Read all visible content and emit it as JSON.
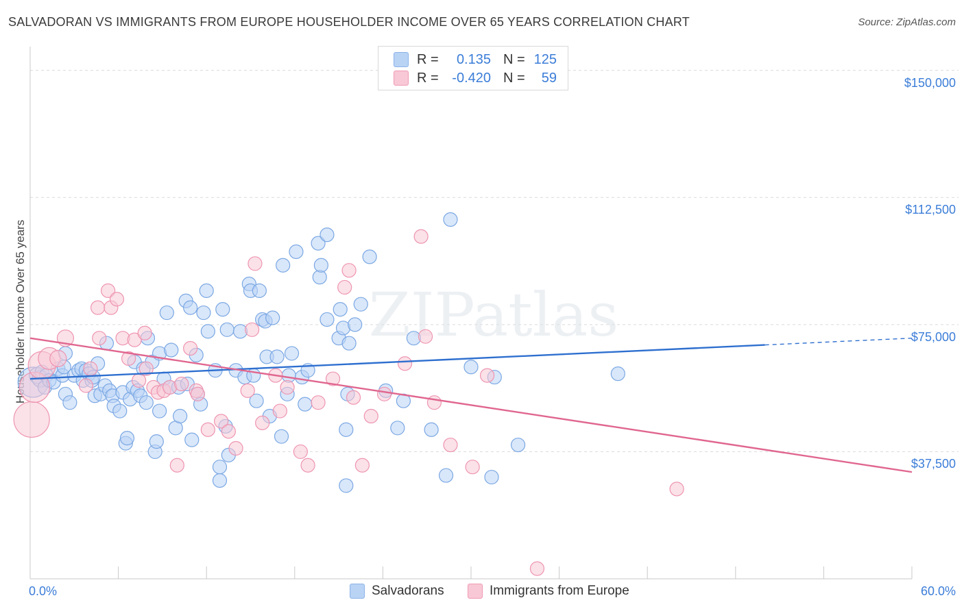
{
  "title": "SALVADORAN VS IMMIGRANTS FROM EUROPE HOUSEHOLDER INCOME OVER 65 YEARS CORRELATION CHART",
  "source": "Source: ZipAtlas.com",
  "watermark": "ZIPatlas",
  "colors": {
    "blue_fill": "#b9d3f5",
    "blue_stroke": "#7aa7e3",
    "blue_line": "#2e6fcf",
    "pink_fill": "#f8c8d6",
    "pink_stroke": "#ee94b0",
    "pink_line": "#e0668f",
    "axis_text": "#3b7dd8",
    "grid": "#d9d9d9"
  },
  "legend": {
    "rows": [
      {
        "r_label": "R =",
        "r_value": "0.135",
        "n_label": "N =",
        "n_value": "125"
      },
      {
        "r_label": "R =",
        "r_value": "-0.420",
        "n_label": "N =",
        "n_value": "59"
      }
    ]
  },
  "bottom_legend": {
    "salvadorans": "Salvadorans",
    "europe": "Immigrants from Europe"
  },
  "chart_data": {
    "type": "scatter",
    "title": "SALVADORAN VS IMMIGRANTS FROM EUROPE HOUSEHOLDER INCOME OVER 65 YEARS CORRELATION CHART",
    "xlabel": "",
    "ylabel": "Householder Income Over 65 years",
    "xlim": [
      0,
      60
    ],
    "ylim": [
      0,
      155000
    ],
    "x_tick_labels": [
      "0.0%",
      "60.0%"
    ],
    "y_ticks": [
      37500,
      75000,
      112500,
      150000
    ],
    "y_tick_labels": [
      "$37,500",
      "$75,000",
      "$112,500",
      "$150,000"
    ],
    "grid": true,
    "legend_position": "top-center",
    "series": [
      {
        "name": "Salvadorans",
        "color": "#7aa7e3",
        "points": [
          [
            0.2,
            58000,
            22
          ],
          [
            0.5,
            60000,
            12
          ],
          [
            0.7,
            59000,
            12
          ],
          [
            0.8,
            61000,
            10
          ],
          [
            1.0,
            56500,
            10
          ],
          [
            1.1,
            60000,
            10
          ],
          [
            1.3,
            58500,
            10
          ],
          [
            1.6,
            58000,
            10
          ],
          [
            1.9,
            62000,
            10
          ],
          [
            2.2,
            60000,
            10
          ],
          [
            2.3,
            62500,
            10
          ],
          [
            2.4,
            66500,
            10
          ],
          [
            2.4,
            54500,
            10
          ],
          [
            2.7,
            52000,
            10
          ],
          [
            3.0,
            60000,
            10
          ],
          [
            3.3,
            61500,
            10
          ],
          [
            3.5,
            62000,
            10
          ],
          [
            3.6,
            58500,
            10
          ],
          [
            3.8,
            61500,
            10
          ],
          [
            4.0,
            60500,
            10
          ],
          [
            4.2,
            58500,
            10
          ],
          [
            4.3,
            59500,
            10
          ],
          [
            4.4,
            54000,
            10
          ],
          [
            4.6,
            63500,
            10
          ],
          [
            4.8,
            54500,
            10
          ],
          [
            5.1,
            57000,
            10
          ],
          [
            5.2,
            69500,
            10
          ],
          [
            5.4,
            55500,
            10
          ],
          [
            5.6,
            54000,
            10
          ],
          [
            5.7,
            51000,
            10
          ],
          [
            6.1,
            49500,
            10
          ],
          [
            6.3,
            55000,
            10
          ],
          [
            6.5,
            40000,
            10
          ],
          [
            6.6,
            41500,
            10
          ],
          [
            6.8,
            53000,
            10
          ],
          [
            7.0,
            56500,
            10
          ],
          [
            7.1,
            64000,
            10
          ],
          [
            7.3,
            55500,
            10
          ],
          [
            7.5,
            54000,
            10
          ],
          [
            7.7,
            62000,
            10
          ],
          [
            7.9,
            52000,
            10
          ],
          [
            8.0,
            71000,
            10
          ],
          [
            8.3,
            64000,
            10
          ],
          [
            8.5,
            37500,
            10
          ],
          [
            8.6,
            40500,
            10
          ],
          [
            8.8,
            49500,
            10
          ],
          [
            8.8,
            66500,
            10
          ],
          [
            9.1,
            59000,
            10
          ],
          [
            9.3,
            78500,
            10
          ],
          [
            9.5,
            56500,
            10
          ],
          [
            9.6,
            67500,
            10
          ],
          [
            9.9,
            44500,
            10
          ],
          [
            10.1,
            56500,
            10
          ],
          [
            10.2,
            48000,
            10
          ],
          [
            10.6,
            82000,
            10
          ],
          [
            10.7,
            57500,
            10
          ],
          [
            10.9,
            80000,
            10
          ],
          [
            11.0,
            41000,
            10
          ],
          [
            11.3,
            66000,
            10
          ],
          [
            11.4,
            54500,
            10
          ],
          [
            11.6,
            51500,
            10
          ],
          [
            11.8,
            78500,
            10
          ],
          [
            12.0,
            85000,
            10
          ],
          [
            12.1,
            73000,
            10
          ],
          [
            12.6,
            61500,
            10
          ],
          [
            12.9,
            33000,
            10
          ],
          [
            12.9,
            29000,
            10
          ],
          [
            13.1,
            79500,
            10
          ],
          [
            13.3,
            45000,
            10
          ],
          [
            13.4,
            73500,
            10
          ],
          [
            13.5,
            36500,
            10
          ],
          [
            14.0,
            61500,
            10
          ],
          [
            14.3,
            73000,
            10
          ],
          [
            14.6,
            59500,
            10
          ],
          [
            14.9,
            87000,
            10
          ],
          [
            15.0,
            85000,
            10
          ],
          [
            15.2,
            60000,
            10
          ],
          [
            15.4,
            52500,
            10
          ],
          [
            15.6,
            85000,
            10
          ],
          [
            15.8,
            76500,
            10
          ],
          [
            16.0,
            76000,
            10
          ],
          [
            16.1,
            65500,
            10
          ],
          [
            16.3,
            48000,
            10
          ],
          [
            16.5,
            77000,
            10
          ],
          [
            16.8,
            65500,
            10
          ],
          [
            17.1,
            42000,
            10
          ],
          [
            17.2,
            92500,
            10
          ],
          [
            17.5,
            54500,
            10
          ],
          [
            17.6,
            60000,
            10
          ],
          [
            17.8,
            66500,
            10
          ],
          [
            18.1,
            96500,
            10
          ],
          [
            18.5,
            59500,
            10
          ],
          [
            18.7,
            51500,
            10
          ],
          [
            18.9,
            61500,
            10
          ],
          [
            19.6,
            99000,
            10
          ],
          [
            19.7,
            89000,
            10
          ],
          [
            19.8,
            92500,
            10
          ],
          [
            20.2,
            101500,
            10
          ],
          [
            20.2,
            76500,
            10
          ],
          [
            21.0,
            71000,
            10
          ],
          [
            21.1,
            79500,
            10
          ],
          [
            21.3,
            74000,
            10
          ],
          [
            21.5,
            27500,
            10
          ],
          [
            21.5,
            44000,
            10
          ],
          [
            21.6,
            54500,
            10
          ],
          [
            21.7,
            69500,
            10
          ],
          [
            22.1,
            75000,
            10
          ],
          [
            22.5,
            81000,
            10
          ],
          [
            23.1,
            95000,
            10
          ],
          [
            24.2,
            55500,
            10
          ],
          [
            25.0,
            44500,
            10
          ],
          [
            25.4,
            52500,
            10
          ],
          [
            26.1,
            71000,
            10
          ],
          [
            27.3,
            44000,
            10
          ],
          [
            28.3,
            30500,
            10
          ],
          [
            28.6,
            106000,
            10
          ],
          [
            30.0,
            62500,
            10
          ],
          [
            31.4,
            30000,
            10
          ],
          [
            31.6,
            59500,
            10
          ],
          [
            33.2,
            39500,
            10
          ],
          [
            40.0,
            60500,
            10
          ]
        ],
        "trend": {
          "x": [
            0.0,
            50.0,
            60.0
          ],
          "y": [
            59000,
            69000,
            71000
          ],
          "dashed_from_x": 50.0
        }
      },
      {
        "name": "Immigrants from Europe",
        "color": "#ee94b0",
        "points": [
          [
            0.1,
            47000,
            26
          ],
          [
            0.3,
            56500,
            22
          ],
          [
            0.8,
            63000,
            20
          ],
          [
            1.3,
            65000,
            16
          ],
          [
            1.9,
            65000,
            12
          ],
          [
            2.4,
            71000,
            12
          ],
          [
            3.8,
            57000,
            10
          ],
          [
            4.1,
            62000,
            10
          ],
          [
            4.6,
            80000,
            10
          ],
          [
            4.7,
            71000,
            10
          ],
          [
            5.3,
            85000,
            10
          ],
          [
            5.5,
            80000,
            10
          ],
          [
            5.9,
            82500,
            10
          ],
          [
            6.3,
            71000,
            10
          ],
          [
            6.7,
            65000,
            10
          ],
          [
            7.1,
            70500,
            10
          ],
          [
            7.4,
            58500,
            10
          ],
          [
            7.8,
            72500,
            10
          ],
          [
            7.9,
            62000,
            10
          ],
          [
            8.4,
            56500,
            10
          ],
          [
            8.7,
            55000,
            10
          ],
          [
            9.1,
            55500,
            10
          ],
          [
            9.5,
            56500,
            10
          ],
          [
            10.0,
            33500,
            10
          ],
          [
            10.3,
            57500,
            10
          ],
          [
            10.9,
            68000,
            10
          ],
          [
            11.3,
            55500,
            10
          ],
          [
            11.4,
            54500,
            10
          ],
          [
            12.1,
            44000,
            10
          ],
          [
            13.0,
            46500,
            10
          ],
          [
            13.5,
            43500,
            10
          ],
          [
            14.0,
            38500,
            10
          ],
          [
            14.8,
            55500,
            10
          ],
          [
            15.1,
            73500,
            10
          ],
          [
            15.3,
            93000,
            10
          ],
          [
            15.8,
            46000,
            10
          ],
          [
            16.7,
            60000,
            10
          ],
          [
            17.0,
            49500,
            10
          ],
          [
            17.5,
            56500,
            10
          ],
          [
            18.4,
            37500,
            10
          ],
          [
            18.9,
            33500,
            10
          ],
          [
            19.6,
            52000,
            10
          ],
          [
            20.6,
            59000,
            10
          ],
          [
            21.4,
            86000,
            10
          ],
          [
            21.7,
            91000,
            10
          ],
          [
            22.0,
            53500,
            10
          ],
          [
            22.6,
            33500,
            10
          ],
          [
            23.2,
            48000,
            10
          ],
          [
            24.1,
            54500,
            10
          ],
          [
            25.5,
            63500,
            10
          ],
          [
            26.6,
            101000,
            10
          ],
          [
            26.9,
            71500,
            10
          ],
          [
            27.5,
            52000,
            10
          ],
          [
            28.6,
            39500,
            10
          ],
          [
            30.1,
            33000,
            10
          ],
          [
            31.1,
            60000,
            10
          ],
          [
            34.5,
            3000,
            10
          ],
          [
            44.0,
            26500,
            10
          ]
        ],
        "trend": {
          "x": [
            0.0,
            60.0
          ],
          "y": [
            71000,
            31500
          ]
        }
      }
    ]
  }
}
